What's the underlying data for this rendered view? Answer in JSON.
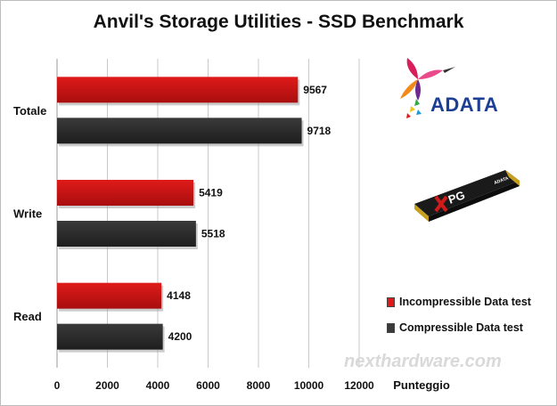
{
  "chart_data": {
    "type": "bar",
    "orientation": "horizontal",
    "title": "Anvil's Storage Utilities - SSD Benchmark",
    "categories": [
      "Totale",
      "Write",
      "Read"
    ],
    "series": [
      {
        "name": "Incompressible Data test",
        "color": "#e01a1a",
        "values": [
          9567,
          5419,
          4148
        ]
      },
      {
        "name": "Compressible Data test",
        "color": "#3a3a3a",
        "values": [
          9718,
          5518,
          4200
        ]
      }
    ],
    "xlabel": "Punteggio",
    "xlim": [
      0,
      12000
    ],
    "ticks": [
      "0",
      "2000",
      "4000",
      "6000",
      "8000",
      "10000",
      "12000"
    ],
    "grid": true,
    "legend_position": "bottom-right"
  },
  "brand": {
    "logo_text": "ADATA",
    "ssd_label": "XPG",
    "ssd_brand_small": "ADATA",
    "watermark": "nexthardware.com"
  }
}
